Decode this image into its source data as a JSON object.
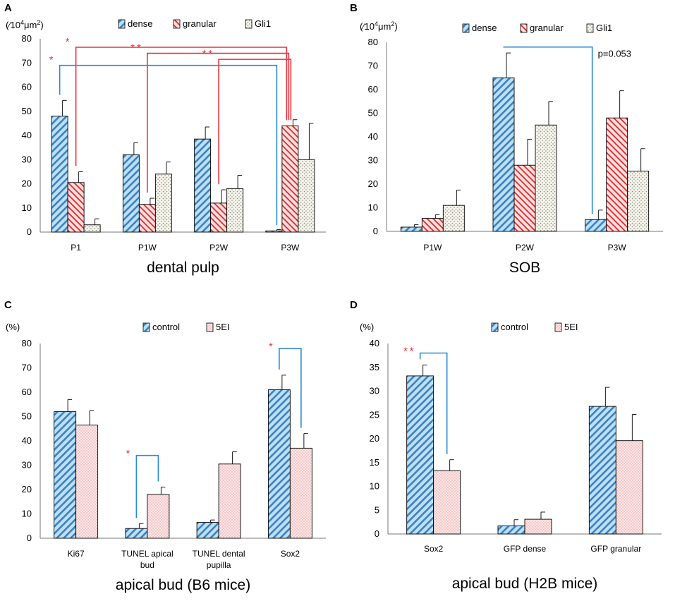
{
  "colors": {
    "blue_fill": "#bfe0f2",
    "blue_stripe": "#3a82c4",
    "red_fill": "#ffd0d0",
    "red_stripe": "#d92b2b",
    "gli_fill": "#f4f4ec",
    "gli_dot": "#8a8a7a",
    "pink_fill": "#fbe7e7",
    "pink_dot": "#e99a9a",
    "sig_red": "#e8323c",
    "bracket_red": "#e8323c",
    "bracket_blue": "#2a8ad8"
  },
  "chart_data": [
    {
      "panel": "A",
      "type": "bar",
      "unit_label": "(∕104μm2)",
      "unit_prefix": "(",
      "unit_slash": "∕",
      "unit_base": "10",
      "unit_exp": "4",
      "unit_mu": "μm",
      "unit_exp2": "2",
      "unit_suffix": ")",
      "title": "dental pulp",
      "ylim": [
        0,
        80
      ],
      "yticks": [
        0,
        10,
        20,
        30,
        40,
        50,
        60,
        70,
        80
      ],
      "categories": [
        "P1",
        "P1W",
        "P2W",
        "P3W"
      ],
      "legend": [
        "dense",
        "granular",
        "Gli1"
      ],
      "series": [
        {
          "name": "dense",
          "values": [
            48,
            32,
            38.5,
            0.5
          ],
          "errors": [
            6.5,
            5,
            5,
            0.5
          ],
          "pattern": "blue"
        },
        {
          "name": "granular",
          "values": [
            20.5,
            11.5,
            12,
            44
          ],
          "errors": [
            4.5,
            2.5,
            5.5,
            2.5
          ],
          "pattern": "red"
        },
        {
          "name": "Gli1",
          "values": [
            3,
            24,
            18,
            30
          ],
          "errors": [
            2.5,
            5,
            5.5,
            15
          ],
          "pattern": "gli"
        }
      ],
      "annotations": [
        {
          "label": "*",
          "color": "red",
          "from": [
            0,
            1
          ],
          "to": [
            3,
            1
          ],
          "level": 76.5
        },
        {
          "label": "**",
          "color": "red",
          "from": [
            1,
            1
          ],
          "to": [
            3,
            1
          ],
          "level": 74
        },
        {
          "label": "**",
          "color": "red",
          "from": [
            2,
            1
          ],
          "to": [
            3,
            1
          ],
          "level": 71.5
        },
        {
          "label": "*",
          "color": "blue",
          "from": [
            0,
            0
          ],
          "to": [
            3,
            0
          ],
          "level": 69,
          "star_color": "red"
        }
      ]
    },
    {
      "panel": "B",
      "type": "bar",
      "unit_label": "(∕104μm2)",
      "unit_prefix": "(",
      "unit_slash": "∕",
      "unit_base": "10",
      "unit_exp": "4",
      "unit_mu": "μm",
      "unit_exp2": "2",
      "unit_suffix": ")",
      "title": "SOB",
      "ylim": [
        0,
        80
      ],
      "yticks": [
        0,
        10,
        20,
        30,
        40,
        50,
        60,
        70,
        80
      ],
      "categories": [
        "P1W",
        "P2W",
        "P3W"
      ],
      "legend": [
        "dense",
        "granular",
        "Gli1"
      ],
      "series": [
        {
          "name": "dense",
          "values": [
            1.8,
            65,
            5
          ],
          "errors": [
            1,
            10.5,
            4
          ],
          "pattern": "blue"
        },
        {
          "name": "granular",
          "values": [
            5.5,
            28,
            48
          ],
          "errors": [
            1.5,
            11,
            11.5
          ],
          "pattern": "red"
        },
        {
          "name": "Gli1",
          "values": [
            11,
            45,
            25.5
          ],
          "errors": [
            6.5,
            10,
            9.5
          ],
          "pattern": "gli"
        }
      ],
      "annotations": [
        {
          "label": "p=0.053",
          "color": "blue",
          "from": [
            1,
            0
          ],
          "to": [
            2,
            0
          ],
          "level": 78
        }
      ]
    },
    {
      "panel": "C",
      "type": "bar",
      "unit_label": "(%)",
      "title": "apical bud (B6 mice)",
      "ylim": [
        0,
        80
      ],
      "yticks": [
        0,
        10,
        20,
        30,
        40,
        50,
        60,
        70,
        80
      ],
      "categories": [
        [
          "Ki67"
        ],
        [
          "TUNEL apical",
          "bud"
        ],
        [
          "TUNEL dental",
          "pupilla"
        ],
        [
          "Sox2"
        ]
      ],
      "legend": [
        "control",
        "5EI"
      ],
      "series": [
        {
          "name": "control",
          "values": [
            52,
            4,
            6.5,
            61
          ],
          "errors": [
            5,
            2,
            1,
            6
          ],
          "pattern": "blue"
        },
        {
          "name": "5EI",
          "values": [
            46.5,
            18,
            30.5,
            37
          ],
          "errors": [
            6,
            3,
            5,
            6
          ],
          "pattern": "pink"
        }
      ],
      "annotations": [
        {
          "label": "*",
          "color": "blue",
          "star_color": "red",
          "cat": 1,
          "level": 34
        },
        {
          "label": "*",
          "color": "blue",
          "star_color": "red",
          "cat": 3,
          "level": 78
        }
      ]
    },
    {
      "panel": "D",
      "type": "bar",
      "unit_label": "(%)",
      "title": "apical bud (H2B mice)",
      "ylim": [
        0,
        40
      ],
      "yticks": [
        0,
        5,
        10,
        15,
        20,
        25,
        30,
        35,
        40
      ],
      "categories": [
        [
          "Sox2"
        ],
        [
          "GFP dense"
        ],
        [
          "GFP granular"
        ]
      ],
      "legend": [
        "control",
        "5EI"
      ],
      "series": [
        {
          "name": "control",
          "values": [
            33.2,
            1.7,
            26.8
          ],
          "errors": [
            2.3,
            1.3,
            4
          ],
          "pattern": "blue"
        },
        {
          "name": "5EI",
          "values": [
            13.3,
            3.1,
            19.6
          ],
          "errors": [
            2.3,
            1.5,
            5.5
          ],
          "pattern": "pink"
        }
      ],
      "annotations": [
        {
          "label": "**",
          "color": "blue",
          "star_color": "red",
          "cat": 0,
          "level": 38
        }
      ]
    }
  ]
}
